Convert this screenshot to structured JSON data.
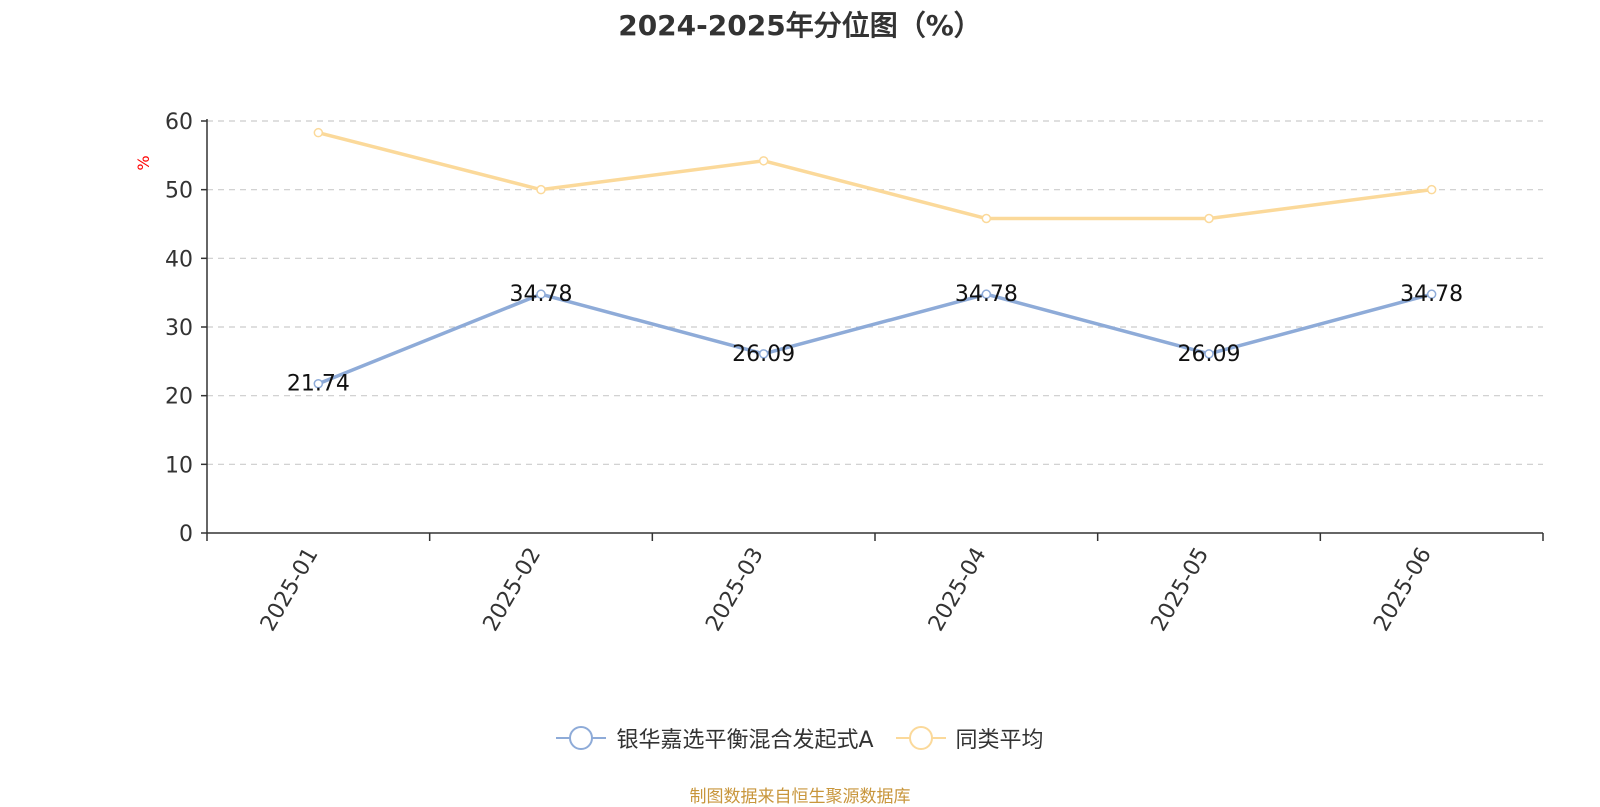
{
  "chart_data": {
    "type": "line",
    "title": "2024-2025年分位图（%）",
    "ylabel": "%",
    "categories": [
      "2025-01",
      "2025-02",
      "2025-03",
      "2025-04",
      "2025-05",
      "2025-06"
    ],
    "ylim": [
      0,
      60
    ],
    "yticks": [
      0,
      10,
      20,
      30,
      40,
      50,
      60
    ],
    "grid": true,
    "legend_position": "bottom",
    "series": [
      {
        "name": "银华嘉选平衡混合发起式A",
        "color": "#8eabd8",
        "values": [
          21.74,
          34.78,
          26.09,
          34.78,
          26.09,
          34.78
        ],
        "labels": [
          "21.74",
          "34.78",
          "26.09",
          "34.78",
          "26.09",
          "34.78"
        ]
      },
      {
        "name": "同类平均",
        "color": "#fbd99a",
        "values": [
          58.3,
          50.0,
          54.2,
          45.8,
          45.8,
          50.0
        ]
      }
    ]
  },
  "footer": {
    "source": "制图数据来自恒生聚源数据库"
  }
}
